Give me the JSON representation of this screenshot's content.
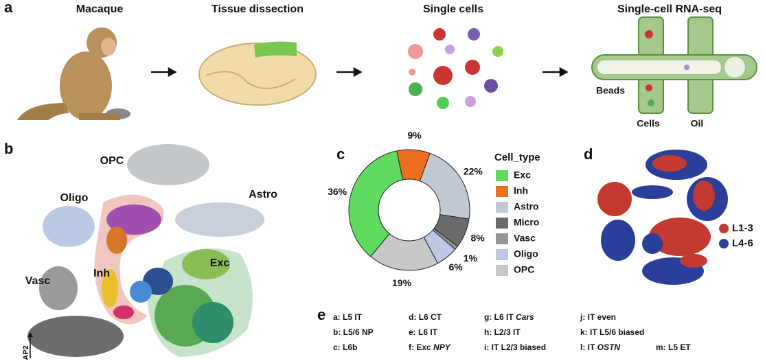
{
  "panels": [
    "a",
    "b",
    "c",
    "d",
    "e"
  ],
  "panel_a": {
    "steps": [
      "Macaque",
      "Tissue dissection",
      "Single cells",
      "Single-cell RNA-seq"
    ],
    "device_labels": [
      "Beads",
      "Cells",
      "Oil"
    ]
  },
  "panel_b": {
    "clusters": [
      "OPC",
      "Oligo",
      "Astro",
      "Vasc",
      "Inh",
      "Exc"
    ],
    "axis_label": "AP2"
  },
  "chart_data": {
    "type": "donut",
    "legend_title": "Cell_type",
    "categories": [
      "Exc",
      "Inh",
      "Astro",
      "Micro",
      "Vasc",
      "Oligo",
      "OPC"
    ],
    "values": [
      36,
      9,
      22,
      8,
      1,
      6,
      19
    ],
    "value_labels": [
      "36%",
      "9%",
      "22%",
      "8%",
      "1%",
      "6%",
      "19%"
    ],
    "colors": [
      "#5fdc5f",
      "#ec6f1f",
      "#c3c9d3",
      "#6b6b6b",
      "#969696",
      "#bcc8e6",
      "#c8c8c8"
    ]
  },
  "panel_d": {
    "legend": [
      {
        "name": "L1-3",
        "color": "#c23a30"
      },
      {
        "name": "L4-6",
        "color": "#2a3f9c"
      }
    ]
  },
  "panel_e": {
    "entries": [
      {
        "text": "a: L5 IT"
      },
      {
        "text": "d: L6 CT"
      },
      {
        "text": "g: L6 IT",
        "italic": "Cars"
      },
      {
        "text": "j: IT even"
      },
      {
        "text": "b: L5/6 NP"
      },
      {
        "text": "e: L6 IT"
      },
      {
        "text": "h: L2/3 IT"
      },
      {
        "text": "k: IT L5/6 biased"
      },
      {
        "text": "c: L6b"
      },
      {
        "text": "f: Exc",
        "italic": "NPY"
      },
      {
        "text": "i: IT L2/3 biased"
      },
      {
        "text": "l: IT",
        "italic": "OSTN"
      },
      {
        "text": "m: L5 ET"
      }
    ]
  }
}
